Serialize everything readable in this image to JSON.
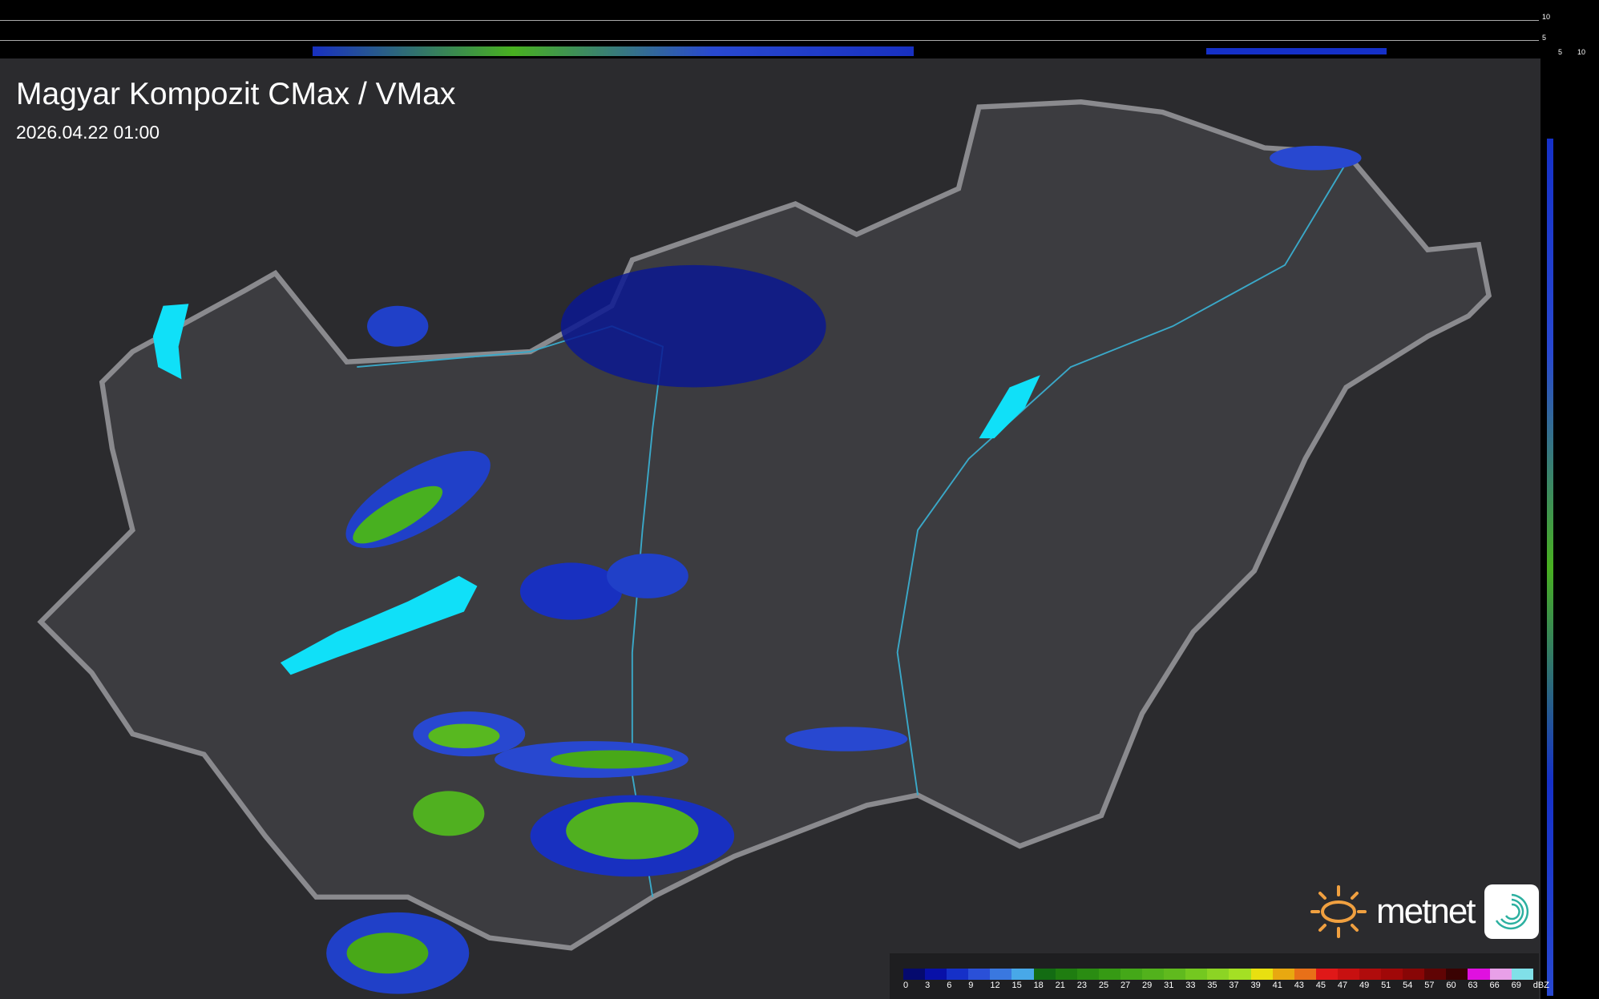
{
  "header": {
    "title": "Magyar Kompozit CMax / VMax",
    "timestamp": "2026.04.22 01:00"
  },
  "profile_axes": {
    "top_ticks": [
      "10",
      "5"
    ],
    "right_ticks": [
      "5",
      "10"
    ]
  },
  "legend": {
    "unit": "dBZ",
    "labels": [
      "0",
      "3",
      "6",
      "9",
      "12",
      "15",
      "18",
      "21",
      "23",
      "25",
      "27",
      "29",
      "31",
      "33",
      "35",
      "37",
      "39",
      "41",
      "43",
      "45",
      "47",
      "49",
      "51",
      "54",
      "57",
      "60",
      "63",
      "66",
      "69"
    ],
    "colors": [
      "#050a6e",
      "#0810a8",
      "#1530c8",
      "#2a50d8",
      "#3a78e0",
      "#48a8e8",
      "#136c13",
      "#1f7d10",
      "#2a8c12",
      "#369a14",
      "#44a818",
      "#52b21c",
      "#60ba1e",
      "#74c820",
      "#8cd424",
      "#a4e024",
      "#e8e010",
      "#e8a810",
      "#e87018",
      "#e01818",
      "#c81010",
      "#b00c0c",
      "#a00808",
      "#880606",
      "#600404",
      "#3a0202",
      "#e010e0",
      "#e8a0e8",
      "#80e0e8"
    ]
  },
  "branding": {
    "logo_text": "metnet",
    "logo_icon": "sun-icon",
    "app_icon": "swirl-icon",
    "brand_color": "#f0a040"
  }
}
